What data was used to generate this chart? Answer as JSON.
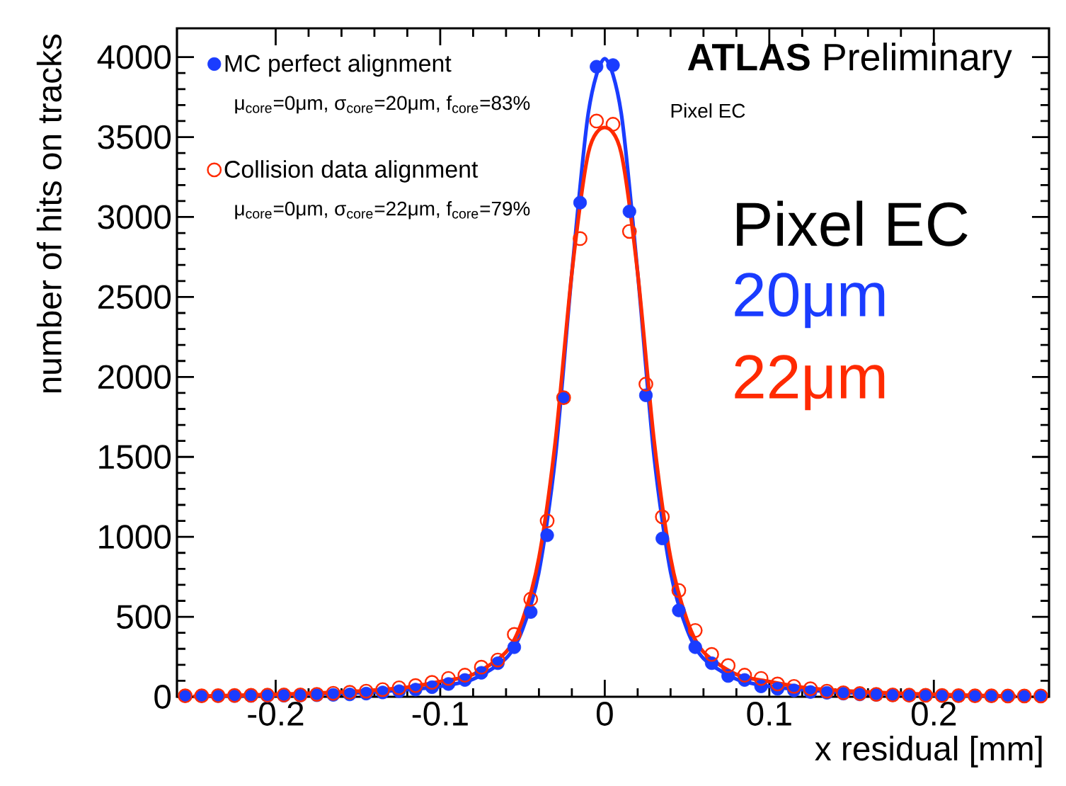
{
  "chart_data": {
    "type": "scatter",
    "xlabel": "x residual [mm]",
    "ylabel": "number of hits on tracks",
    "xlim": [
      -0.26,
      0.27
    ],
    "ylim": [
      0,
      4180
    ],
    "xticks": [
      -0.2,
      -0.1,
      0,
      0.1,
      0.2
    ],
    "yticks": [
      0,
      500,
      1000,
      1500,
      2000,
      2500,
      3000,
      3500,
      4000
    ],
    "marker": "circle",
    "legend": "top left",
    "x": [
      -0.255,
      -0.245,
      -0.235,
      -0.225,
      -0.215,
      -0.205,
      -0.195,
      -0.185,
      -0.175,
      -0.165,
      -0.155,
      -0.145,
      -0.135,
      -0.125,
      -0.115,
      -0.105,
      -0.095,
      -0.085,
      -0.075,
      -0.065,
      -0.055,
      -0.045,
      -0.035,
      -0.025,
      -0.015,
      -0.005,
      0.005,
      0.015,
      0.025,
      0.035,
      0.045,
      0.055,
      0.065,
      0.075,
      0.085,
      0.095,
      0.105,
      0.115,
      0.125,
      0.135,
      0.145,
      0.155,
      0.165,
      0.175,
      0.185,
      0.195,
      0.205,
      0.215,
      0.225,
      0.235,
      0.245,
      0.255,
      0.265
    ],
    "series": [
      {
        "name": "MC perfect alignment",
        "color": "#1a3cff",
        "values": [
          5,
          5,
          5,
          5,
          6,
          6,
          7,
          8,
          10,
          12,
          15,
          20,
          27,
          35,
          45,
          60,
          80,
          105,
          150,
          210,
          310,
          530,
          1010,
          1870,
          3090,
          3940,
          3950,
          3035,
          1885,
          990,
          540,
          310,
          210,
          130,
          105,
          65,
          50,
          40,
          30,
          25,
          20,
          15,
          12,
          10,
          9,
          8,
          7,
          6,
          6,
          5,
          5,
          5,
          5
        ]
      },
      {
        "name": "Collision data alignment",
        "color": "#ff2a00",
        "values": [
          6,
          6,
          7,
          8,
          9,
          10,
          11,
          12,
          15,
          22,
          28,
          35,
          45,
          56,
          70,
          90,
          115,
          135,
          185,
          230,
          390,
          610,
          1100,
          1870,
          2865,
          3600,
          3580,
          2910,
          1955,
          1125,
          665,
          415,
          265,
          195,
          135,
          115,
          80,
          65,
          50,
          35,
          25,
          20,
          15,
          12,
          10,
          9,
          8,
          7,
          6,
          6,
          5,
          5,
          5
        ]
      },
      {
        "type": "line",
        "color": "#1a3cff",
        "marker": "none",
        "x": [
          -0.25,
          -0.2,
          -0.15,
          -0.12,
          -0.1,
          -0.08,
          -0.06,
          -0.05,
          -0.04,
          -0.03,
          -0.02,
          -0.01,
          0,
          0.01,
          0.02,
          0.03,
          0.04,
          0.05,
          0.06,
          0.08,
          0.1,
          0.12,
          0.15,
          0.2,
          0.25
        ],
        "values": [
          2,
          10,
          25,
          45,
          65,
          110,
          240,
          420,
          780,
          1500,
          2650,
          3650,
          3990,
          3650,
          2650,
          1500,
          780,
          420,
          240,
          110,
          65,
          45,
          25,
          10,
          2
        ]
      },
      {
        "type": "line",
        "color": "#ff2a00",
        "marker": "none",
        "x": [
          -0.25,
          -0.2,
          -0.15,
          -0.12,
          -0.1,
          -0.08,
          -0.06,
          -0.05,
          -0.04,
          -0.03,
          -0.02,
          -0.01,
          0,
          0.01,
          0.02,
          0.03,
          0.04,
          0.05,
          0.06,
          0.08,
          0.1,
          0.12,
          0.15,
          0.2,
          0.25
        ],
        "values": [
          3,
          15,
          35,
          60,
          95,
          140,
          280,
          480,
          870,
          1600,
          2650,
          3400,
          3560,
          3400,
          2650,
          1600,
          870,
          480,
          280,
          140,
          95,
          60,
          35,
          15,
          3
        ]
      }
    ],
    "annotations": [
      "μ$_{core}$=0μm, σ$_{core}$=20μm, f$_{core}$=83%",
      "μ$_{core}$=0μm, σ$_{core}$=22μm, f$_{core}$=79%",
      "**ATLAS** Preliminary",
      "Pixel EC",
      "Pixel EC",
      "20μm",
      "22μm"
    ]
  }
}
